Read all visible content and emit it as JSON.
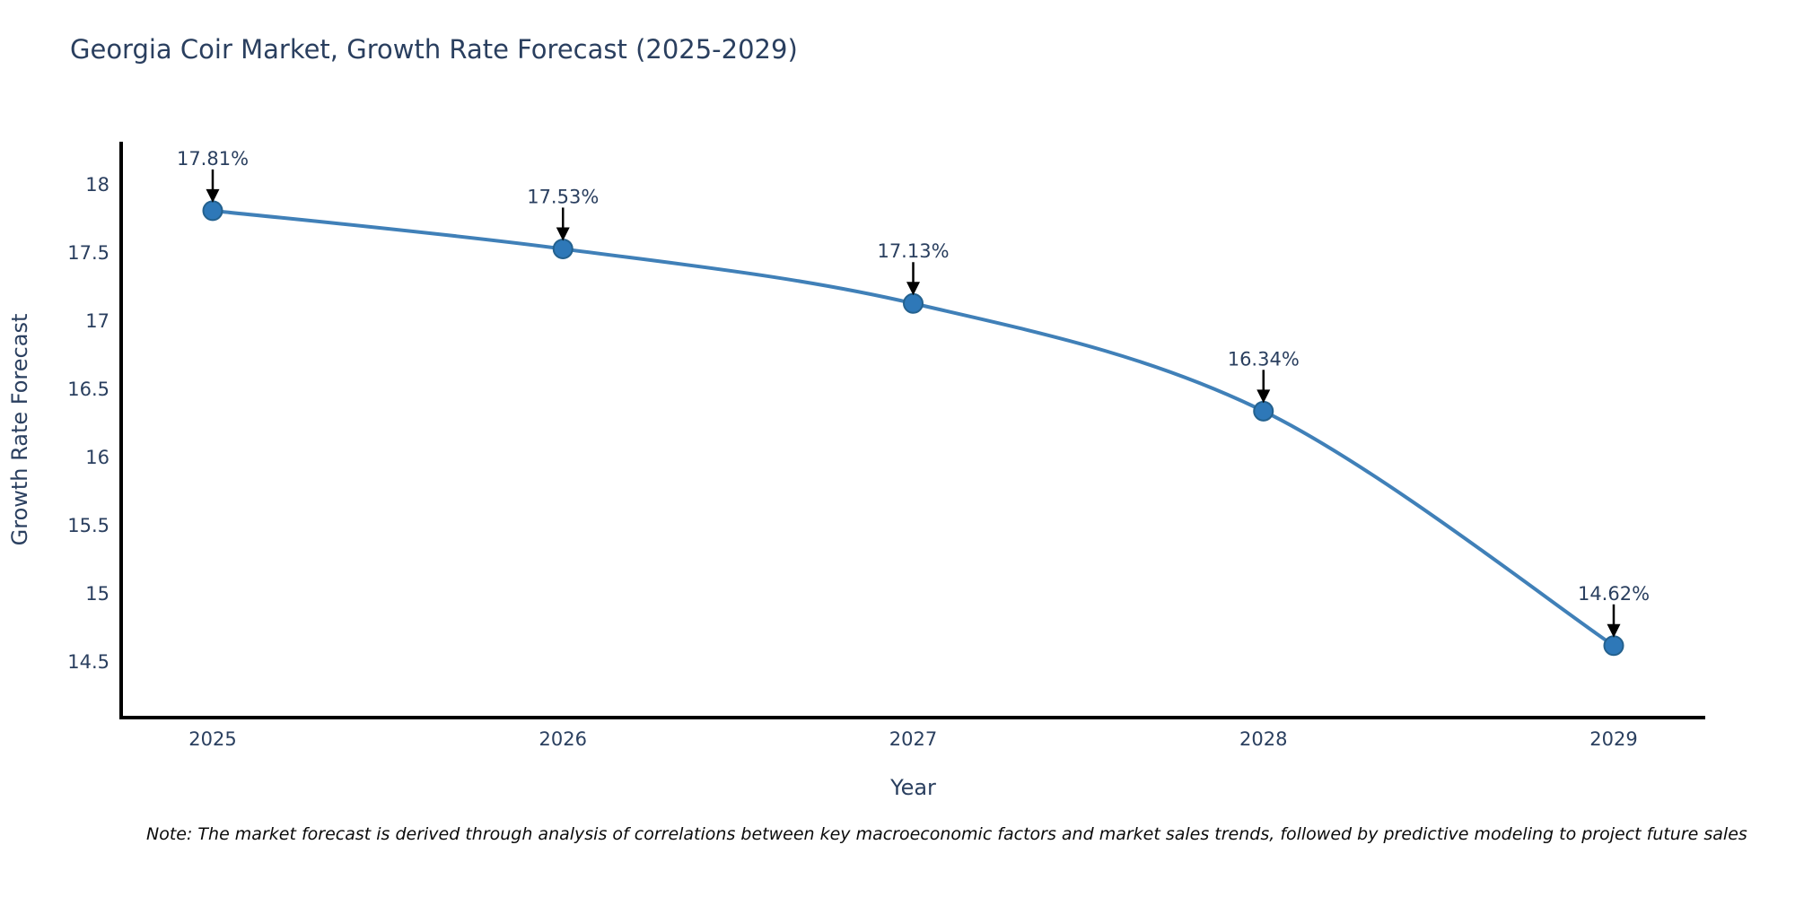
{
  "title": "Georgia Coir Market, Growth Rate Forecast (2025-2029)",
  "note": "Note: The market forecast is derived through analysis of correlations between key macroeconomic factors and market sales trends, followed by predictive modeling to project future sales",
  "chart_data": {
    "type": "line",
    "title": "Georgia Coir Market, Growth Rate Forecast (2025-2029)",
    "xlabel": "Year",
    "ylabel": "Growth Rate Forecast",
    "x": [
      2025,
      2026,
      2027,
      2028,
      2029
    ],
    "values": [
      17.81,
      17.53,
      17.13,
      16.34,
      14.62
    ],
    "point_labels": [
      "17.81%",
      "17.53%",
      "17.13%",
      "16.34%",
      "14.62%"
    ],
    "yticks": [
      18,
      17.5,
      17,
      16.5,
      16,
      15.5,
      15,
      14.5
    ],
    "ylim": [
      14.09,
      18.3
    ],
    "grid": false,
    "legend": "none",
    "annotation_style": "arrow-down-to-point",
    "colors": {
      "line": "#4080b8",
      "marker_fill": "#2e78b8",
      "marker_edge": "#24618e",
      "text": "#2a3f5f",
      "axis": "#000000",
      "arrow": "#000000",
      "note_text": "#0a0a0a"
    }
  }
}
